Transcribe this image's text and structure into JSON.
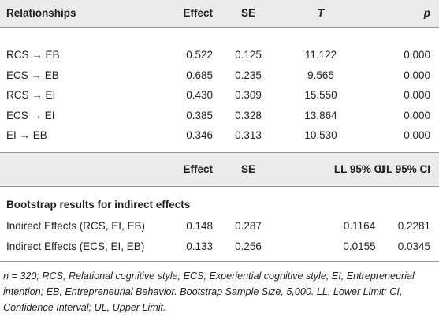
{
  "header": [
    "Relationships",
    "Effect",
    "SE",
    "T",
    "p"
  ],
  "rows": [
    [
      "RCS → EB",
      "0.522",
      "0.125",
      "11.122",
      "0.000"
    ],
    [
      "ECS → EB",
      "0.685",
      "0.235",
      "9.565",
      "0.000"
    ],
    [
      "RCS → EI",
      "0.430",
      "0.309",
      "15.550",
      "0.000"
    ],
    [
      "ECS → EI",
      "0.385",
      "0.328",
      "13.864",
      "0.000"
    ],
    [
      "EI → EB",
      "0.346",
      "0.313",
      "10.530",
      "0.000"
    ]
  ],
  "subheader": [
    "Effect",
    "SE",
    "LL 95% CI",
    "UL 95% CI"
  ],
  "section_title": "Bootstrap results for indirect effects",
  "bootstrap_rows": [
    [
      "Indirect Effects (RCS, EI, EB)",
      "0.148",
      "0.287",
      "0.1164",
      "0.2281"
    ],
    [
      "Indirect Effects (ECS, EI, EB)",
      "0.133",
      "0.256",
      "0.0155",
      "0.0345"
    ]
  ],
  "footnote": "n = 320; RCS, Relational cognitive style; ECS, Experiential cognitive style; EI, Entrepreneurial intention; EB, Entrepreneurial Behavior. Bootstrap Sample Size, 5,000. LL, Lower Limit; CI, Confidence Interval; UL, Upper Limit."
}
